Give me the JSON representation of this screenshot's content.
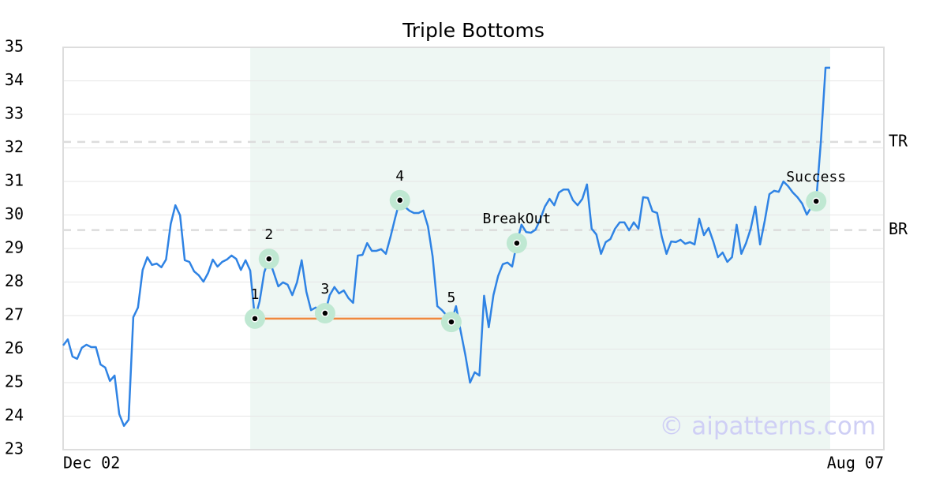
{
  "chart_data": {
    "type": "line",
    "title": "Triple Bottoms",
    "categories": [
      "Dec 02",
      null,
      null,
      null,
      null,
      null,
      null,
      null,
      null,
      null,
      null,
      null,
      null,
      null,
      null,
      null,
      null,
      null,
      null,
      null,
      null,
      null,
      null,
      null,
      null,
      null,
      null,
      null,
      null,
      null,
      null,
      null,
      null,
      null,
      null,
      null,
      null,
      null,
      null,
      null,
      null,
      null,
      null,
      null,
      null,
      null,
      null,
      null,
      null,
      null,
      null,
      null,
      null,
      null,
      null,
      null,
      null,
      null,
      null,
      null,
      null,
      null,
      null,
      null,
      null,
      null,
      null,
      null,
      null,
      null,
      null,
      null,
      null,
      null,
      null,
      null,
      null,
      null,
      null,
      null,
      null,
      null,
      null,
      null,
      null,
      null,
      null,
      null,
      null,
      null,
      null,
      null,
      null,
      null,
      null,
      null,
      null,
      null,
      null,
      null,
      null,
      null,
      null,
      null,
      null,
      null,
      null,
      null,
      null,
      null,
      null,
      null,
      null,
      null,
      null,
      null,
      null,
      null,
      null,
      null,
      null,
      null,
      null,
      null,
      null,
      null,
      null,
      null,
      null,
      null,
      null,
      null,
      null,
      null,
      null,
      null,
      null,
      null,
      null,
      null,
      null,
      null,
      null,
      null,
      null,
      null,
      null,
      null,
      null,
      null,
      null,
      null,
      null,
      null,
      null,
      null,
      null,
      null,
      null,
      null,
      null,
      null,
      null,
      null,
      "Aug 07"
    ],
    "series": [
      {
        "color": "#2f83e4",
        "values": [
          26.11,
          26.29,
          25.78,
          25.71,
          26.04,
          26.13,
          26.06,
          26.06,
          25.54,
          25.45,
          25.05,
          25.21,
          24.06,
          23.71,
          23.89,
          26.95,
          27.24,
          28.36,
          28.74,
          28.51,
          28.55,
          28.44,
          28.67,
          29.73,
          30.29,
          29.99,
          28.65,
          28.6,
          28.32,
          28.2,
          28.01,
          28.27,
          28.67,
          28.46,
          28.6,
          28.67,
          28.79,
          28.69,
          28.36,
          28.65,
          28.34,
          26.91,
          27.42,
          28.29,
          28.69,
          28.29,
          27.87,
          27.99,
          27.92,
          27.61,
          27.99,
          28.65,
          27.71,
          27.16,
          27.24,
          27.16,
          27.07,
          27.61,
          27.85,
          27.66,
          27.75,
          27.52,
          27.38,
          28.79,
          28.81,
          29.16,
          28.93,
          28.93,
          28.98,
          28.84,
          29.35,
          29.92,
          30.44,
          30.25,
          30.13,
          30.06,
          30.06,
          30.13,
          29.66,
          28.76,
          27.28,
          27.16,
          27.0,
          26.81,
          27.28,
          26.53,
          25.82,
          25.0,
          25.31,
          25.21,
          27.59,
          26.65,
          27.61,
          28.18,
          28.53,
          28.58,
          28.46,
          29.16,
          29.71,
          29.49,
          29.47,
          29.56,
          29.87,
          30.25,
          30.48,
          30.29,
          30.67,
          30.76,
          30.76,
          30.44,
          30.29,
          30.48,
          30.91,
          29.59,
          29.42,
          28.84,
          29.19,
          29.28,
          29.59,
          29.78,
          29.78,
          29.54,
          29.78,
          29.59,
          30.53,
          30.51,
          30.11,
          30.06,
          29.35,
          28.84,
          29.21,
          29.19,
          29.26,
          29.14,
          29.19,
          29.12,
          29.89,
          29.4,
          29.61,
          29.21,
          28.74,
          28.88,
          28.6,
          28.74,
          29.71,
          28.84,
          29.16,
          29.59,
          30.25,
          29.12,
          29.82,
          30.62,
          30.72,
          30.69,
          31.0,
          30.86,
          30.67,
          30.53,
          30.34,
          30.01,
          30.25,
          30.41,
          32.18,
          34.39,
          34.39
        ]
      }
    ],
    "ylim": [
      23,
      35
    ],
    "yticks": [
      23,
      24,
      25,
      26,
      27,
      28,
      29,
      30,
      31,
      32,
      33,
      34,
      35
    ],
    "grid": true,
    "shade": {
      "from": 40,
      "to": 164,
      "color": "#eef7f3"
    },
    "annotations": [
      {
        "label": "1",
        "index": 41
      },
      {
        "label": "2",
        "index": 44
      },
      {
        "label": "3",
        "index": 56
      },
      {
        "label": "4",
        "index": 72
      },
      {
        "label": "5",
        "index": 83
      },
      {
        "label": "BreakOut",
        "index": 97
      },
      {
        "label": "Success",
        "index": 161
      }
    ],
    "support_line": {
      "from": 41,
      "to": 83,
      "color": "#f0883e"
    },
    "reference_lines": [
      {
        "label": "TR",
        "value": 32.18
      },
      {
        "label": "BR",
        "value": 29.55
      }
    ],
    "watermark": "© aipatterns.com"
  }
}
